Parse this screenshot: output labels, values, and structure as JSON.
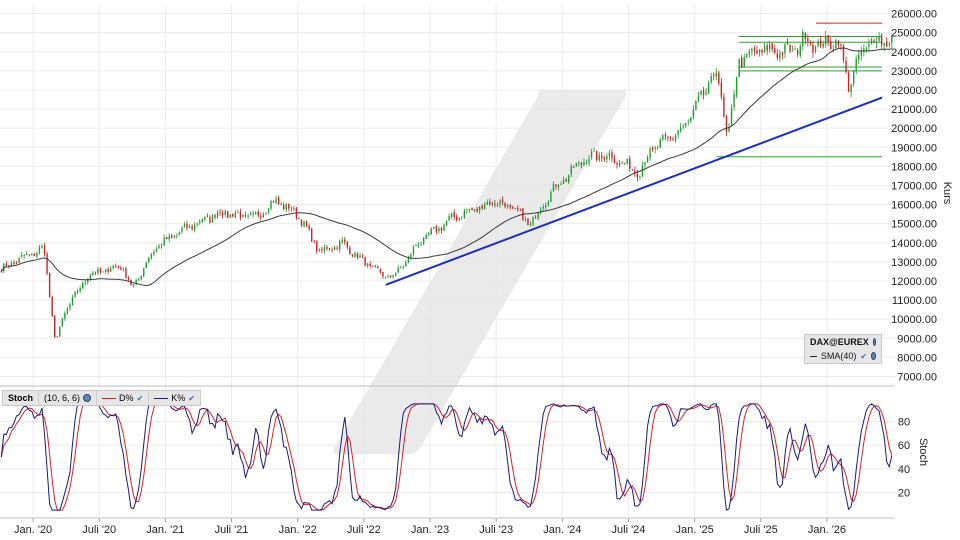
{
  "chart_data": [
    {
      "type": "candlestick",
      "title": "",
      "ylabel": "Kurs",
      "ylim": [
        6500,
        26500
      ],
      "yticks": [
        26000,
        25000,
        24000,
        23000,
        22000,
        21000,
        20000,
        19000,
        18000,
        17000,
        16000,
        15000,
        14000,
        13000,
        12000,
        11000,
        10000,
        9000,
        8000,
        7000
      ],
      "ytick_labels": [
        "26000.00",
        "25000.00",
        "24000.00",
        "23000.00",
        "22000.00",
        "21000.00",
        "20000.00",
        "19000.00",
        "18000.00",
        "17000.00",
        "16000.00",
        "15000.00",
        "14000.00",
        "13000.00",
        "12000.00",
        "11000.00",
        "10000.00",
        "9000.00",
        "8000.00",
        "7000.00"
      ],
      "x_tick_labels": [
        "Jan. '20",
        "Juli '20",
        "Jan. '21",
        "Juli '21",
        "Jan. '22",
        "Juli '22",
        "Jan. '23",
        "Juli '23",
        "Jan. '24",
        "Juli '24",
        "Jan. '25",
        "Juli '25",
        "Jan. '26"
      ],
      "x_ticks": [
        "2020-01",
        "2020-07",
        "2021-01",
        "2021-07",
        "2022-01",
        "2022-07",
        "2023-01",
        "2023-07",
        "2024-01",
        "2024-07",
        "2025-01",
        "2025-07",
        "2026-01"
      ],
      "close_anchors": [
        [
          "2019-10",
          12600
        ],
        [
          "2019-12",
          13200
        ],
        [
          "2020-02",
          13700
        ],
        [
          "2020-03",
          8800
        ],
        [
          "2020-04",
          10500
        ],
        [
          "2020-06",
          12300
        ],
        [
          "2020-09",
          12800
        ],
        [
          "2020-10",
          11600
        ],
        [
          "2020-12",
          13700
        ],
        [
          "2021-03",
          14800
        ],
        [
          "2021-06",
          15600
        ],
        [
          "2021-09",
          15300
        ],
        [
          "2021-11",
          16200
        ],
        [
          "2022-01",
          15500
        ],
        [
          "2022-03",
          13500
        ],
        [
          "2022-05",
          14000
        ],
        [
          "2022-07",
          13000
        ],
        [
          "2022-09",
          12200
        ],
        [
          "2022-10",
          12400
        ],
        [
          "2022-12",
          14000
        ],
        [
          "2023-03",
          15300
        ],
        [
          "2023-07",
          16200
        ],
        [
          "2023-09",
          15600
        ],
        [
          "2023-10",
          14900
        ],
        [
          "2023-12",
          16700
        ],
        [
          "2024-03",
          18400
        ],
        [
          "2024-05",
          18600
        ],
        [
          "2024-08",
          17700
        ],
        [
          "2024-09",
          18800
        ],
        [
          "2024-12",
          20000
        ],
        [
          "2025-03",
          23000
        ],
        [
          "2025-04",
          19400
        ],
        [
          "2025-05",
          23500
        ],
        [
          "2025-07",
          24100
        ],
        [
          "2025-10",
          24000
        ],
        [
          "2025-11",
          24800
        ],
        [
          "2025-12",
          24300
        ],
        [
          "2026-02",
          24600
        ],
        [
          "2026-03",
          22200
        ],
        [
          "2026-04",
          23800
        ],
        [
          "2026-05",
          24600
        ]
      ],
      "series": [
        {
          "name": "DAX@EUREX",
          "kind": "candles",
          "up_color": "#1e9e2e",
          "down_color": "#d21f1f"
        },
        {
          "name": "SMA(40)",
          "kind": "line",
          "color": "#3a3a3a"
        }
      ],
      "trendline": {
        "color": "#1c2fb8",
        "from": [
          "2022-09",
          11800
        ],
        "to": [
          "2026-06",
          21600
        ]
      },
      "horizontal_lines": [
        {
          "color": "#2aa52a",
          "y": 18500,
          "from": "2025-03",
          "to": "2026-06"
        },
        {
          "color": "#2aa52a",
          "y": 23000,
          "from": "2025-05",
          "to": "2026-06"
        },
        {
          "color": "#2aa52a",
          "y": 23200,
          "from": "2025-05",
          "to": "2026-06"
        },
        {
          "color": "#2aa52a",
          "y": 24500,
          "from": "2025-05",
          "to": "2026-06"
        },
        {
          "color": "#2aa52a",
          "y": 24800,
          "from": "2025-05",
          "to": "2026-06"
        },
        {
          "color": "#d21f1f",
          "y": 25500,
          "from": "2025-12",
          "to": "2026-06"
        }
      ],
      "legend": [
        {
          "label": "DAX@EUREX"
        },
        {
          "label": "SMA(40)"
        }
      ]
    },
    {
      "type": "line",
      "title": "",
      "ylabel": "Stoch",
      "ylim": [
        0,
        100
      ],
      "yticks": [
        80,
        60,
        40,
        20
      ],
      "ytick_labels": [
        "80",
        "60",
        "40",
        "20"
      ],
      "params_label": "(10, 6, 6)",
      "indicator_label": "Stoch",
      "series": [
        {
          "name": "D%",
          "color": "#e02020"
        },
        {
          "name": "K%",
          "color": "#1a1a80"
        }
      ]
    }
  ],
  "legend_icons": [
    "settings-icon",
    "check-icon"
  ]
}
